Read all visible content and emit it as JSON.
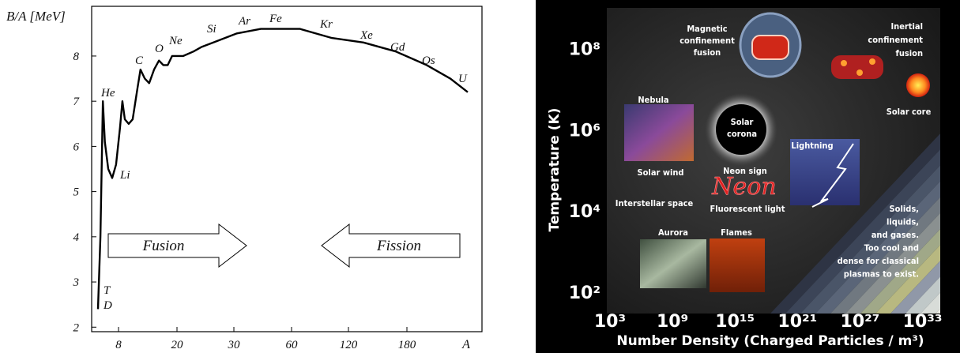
{
  "chart_data": [
    {
      "type": "line",
      "y_label": "B/A [MeV]",
      "x_label": "A",
      "x": [
        3.8,
        4.3,
        4.8,
        5.2,
        5.9,
        6.7,
        7.5,
        8.3,
        8.8,
        9.3,
        10.1,
        10.9,
        11.9,
        12.5,
        13.4,
        14.3,
        15.3,
        16.3,
        17.2,
        18.1,
        19.0,
        20,
        21.1,
        22.9,
        24.3,
        26.4,
        31.6,
        44,
        56.3,
        69,
        102.5,
        135.4,
        168.6,
        200,
        224,
        241.6
      ],
      "values": [
        2.4,
        4.0,
        7.0,
        6.1,
        5.5,
        5.3,
        5.6,
        6.4,
        7.0,
        6.6,
        6.5,
        6.6,
        7.3,
        7.7,
        7.5,
        7.4,
        7.7,
        7.9,
        7.8,
        7.8,
        8.0,
        8.0,
        8.0,
        8.1,
        8.2,
        8.3,
        8.5,
        8.6,
        8.6,
        8.6,
        8.4,
        8.3,
        8.1,
        7.8,
        7.5,
        7.2
      ],
      "color": "#000000",
      "xlim": [
        2.5,
        256
      ],
      "xticks": [
        8,
        20,
        30,
        60,
        120,
        180
      ],
      "ylim": [
        1.9,
        9.1
      ],
      "yticks": [
        2,
        3,
        4,
        5,
        6,
        7,
        8
      ],
      "annotations": [
        "D",
        "T",
        "He",
        "Li",
        "C",
        "O",
        "Ne",
        "Si",
        "Ar",
        "Fe",
        "Kr",
        "Xe",
        "Gd",
        "Os",
        "U",
        "Fusion",
        "Fission"
      ]
    },
    {
      "type": "region-map",
      "x_label": "Number Density (Charged Particles / m³)",
      "y_label": "Temperature (K)",
      "log_x": true,
      "log_y": true,
      "xlim": [
        1000,
        1e+35
      ],
      "xticks": [
        {
          "value": 1000,
          "label": "10³"
        },
        {
          "value": 1000000000.0,
          "label": "10⁹"
        },
        {
          "value": 1000000000000000.0,
          "label": "10¹⁵"
        },
        {
          "value": 1e+21,
          "label": "10²¹"
        },
        {
          "value": 1e+27,
          "label": "10²⁷"
        },
        {
          "value": 1e+33,
          "label": "10³³"
        }
      ],
      "ylim": [
        30,
        1000000000.0
      ],
      "yticks": [
        {
          "value": 100,
          "label": "10²"
        },
        {
          "value": 10000,
          "label": "10⁴"
        },
        {
          "value": 1000000,
          "label": "10⁶"
        },
        {
          "value": 100000000,
          "label": "10⁸"
        }
      ],
      "regions": [
        {
          "lines": [
            "Magnetic",
            "confinement",
            "fusion"
          ]
        },
        {
          "lines": [
            "Inertial",
            "confinement",
            "fusion"
          ]
        },
        {
          "lines": [
            "Solar core"
          ]
        },
        {
          "lines": [
            "Nebula"
          ]
        },
        {
          "lines": [
            "Solar",
            "corona"
          ]
        },
        {
          "lines": [
            "Lightning"
          ]
        },
        {
          "lines": [
            "Solar wind"
          ]
        },
        {
          "lines": [
            "Neon sign"
          ]
        },
        {
          "lines": [
            "Neon"
          ]
        },
        {
          "lines": [
            "Interstellar space"
          ]
        },
        {
          "lines": [
            "Fluorescent light"
          ]
        },
        {
          "lines": [
            "Aurora"
          ]
        },
        {
          "lines": [
            "Flames"
          ]
        },
        {
          "lines": [
            "Solids,",
            "liquids,",
            "and gases.",
            "Too cool and",
            "dense for classical",
            "plasmas to exist."
          ]
        }
      ]
    }
  ]
}
